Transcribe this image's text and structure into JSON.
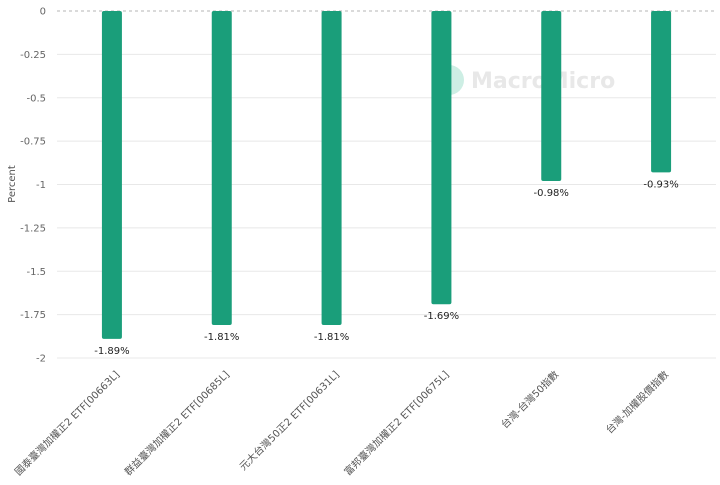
{
  "chart_data": {
    "type": "bar",
    "ylabel": "Percent",
    "ylim": [
      -2,
      0
    ],
    "yticks": [
      0,
      -0.25,
      -0.5,
      -0.75,
      -1,
      -1.25,
      -1.5,
      -1.75,
      -2
    ],
    "ytick_labels": [
      "0",
      "-0.25",
      "-0.5",
      "-0.75",
      "-1",
      "-1.25",
      "-1.5",
      "-1.75",
      "-2"
    ],
    "categories": [
      "國泰臺灣加權正2 ETF[00663L]",
      "群益臺灣加權正2 ETF[00685L]",
      "元大台灣50正2 ETF[00631L]",
      "富邦臺灣加權正2 ETF[00675L]",
      "台灣-台灣50指數",
      "台灣-加權股價指數"
    ],
    "values": [
      -1.89,
      -1.81,
      -1.81,
      -1.69,
      -0.98,
      -0.93
    ],
    "data_labels": [
      "-1.89%",
      "-1.81%",
      "-1.81%",
      "-1.69%",
      "-0.98%",
      "-0.93%"
    ],
    "bar_color": "#1a9e7a",
    "grid": true,
    "legend": "none"
  },
  "watermark": {
    "text": "MacroMicro",
    "color": "#e6e6e6"
  }
}
